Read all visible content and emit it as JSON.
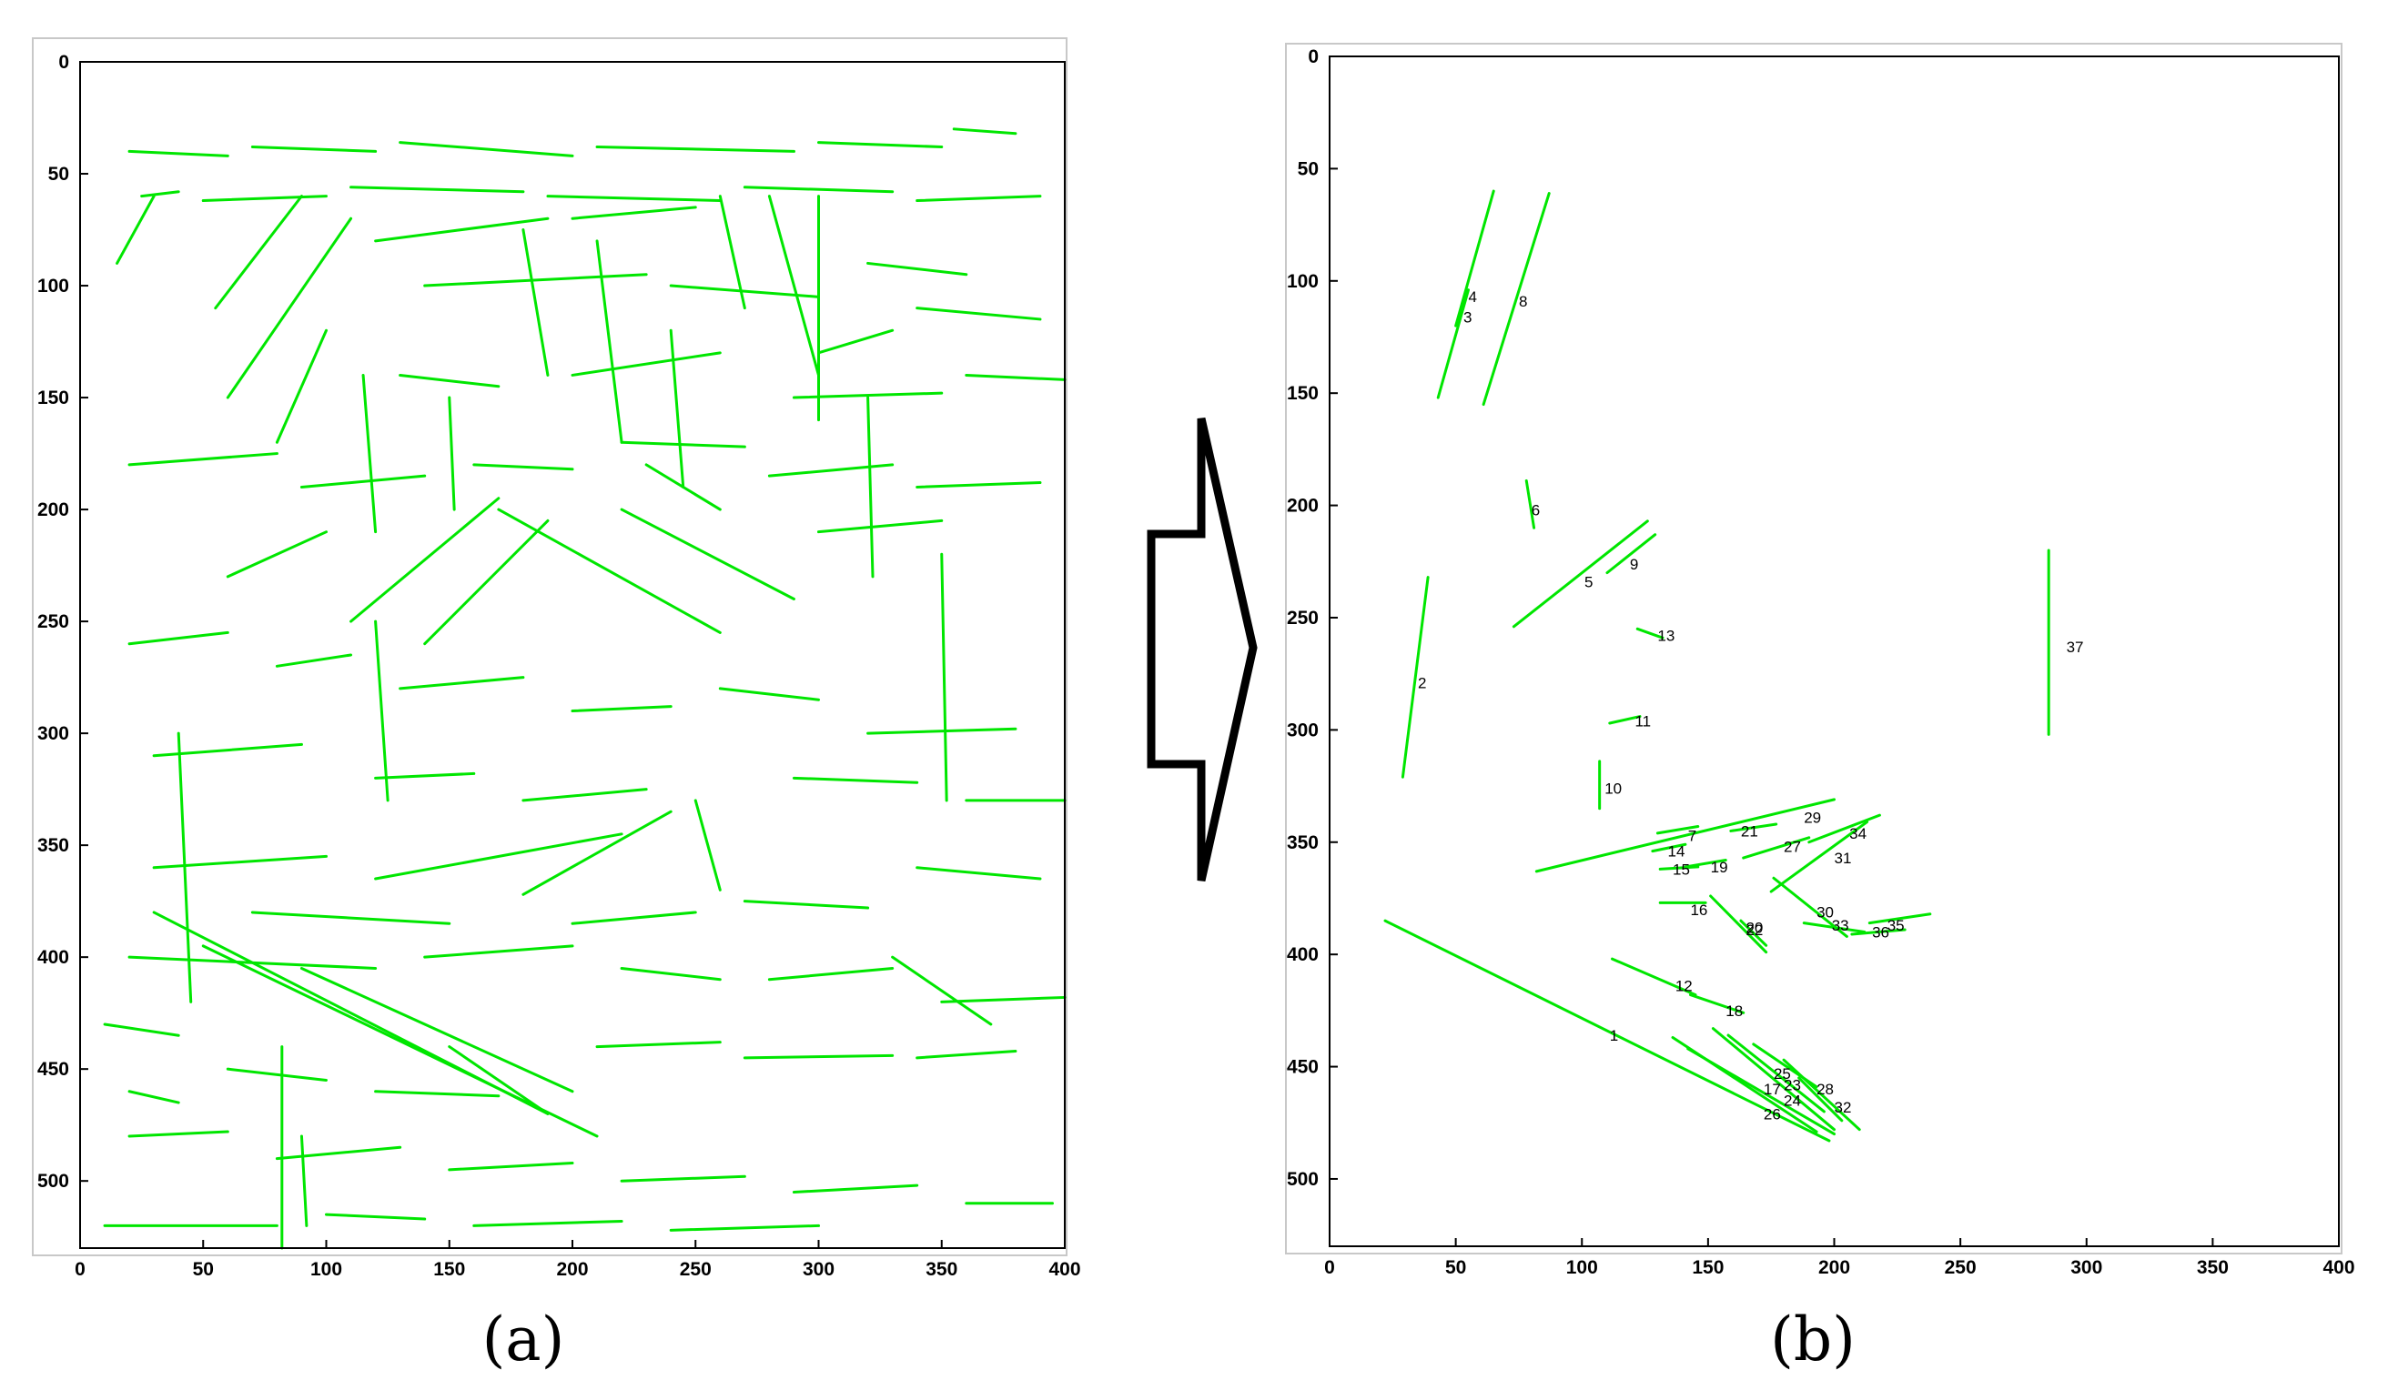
{
  "chart_data": [
    {
      "type": "line",
      "panel_label": "(a)",
      "xlim": [
        0,
        400
      ],
      "ylim": [
        530,
        0
      ],
      "x_ticks": [
        0,
        50,
        100,
        150,
        200,
        250,
        300,
        350,
        400
      ],
      "y_ticks": [
        0,
        50,
        100,
        150,
        200,
        250,
        300,
        350,
        400,
        450,
        500
      ],
      "grid": false,
      "line_color": "#00e600",
      "segments": [
        [
          20,
          40,
          60,
          42
        ],
        [
          70,
          38,
          120,
          40
        ],
        [
          130,
          36,
          200,
          42
        ],
        [
          210,
          38,
          290,
          40
        ],
        [
          300,
          36,
          350,
          38
        ],
        [
          355,
          30,
          380,
          32
        ],
        [
          25,
          60,
          40,
          58
        ],
        [
          50,
          62,
          100,
          60
        ],
        [
          110,
          56,
          180,
          58
        ],
        [
          190,
          60,
          260,
          62
        ],
        [
          270,
          56,
          330,
          58
        ],
        [
          340,
          62,
          390,
          60
        ],
        [
          15,
          90,
          30,
          60
        ],
        [
          55,
          110,
          90,
          60
        ],
        [
          100,
          120,
          80,
          170
        ],
        [
          60,
          150,
          110,
          70
        ],
        [
          120,
          80,
          190,
          70
        ],
        [
          200,
          70,
          250,
          65
        ],
        [
          180,
          75,
          190,
          140
        ],
        [
          210,
          80,
          220,
          170
        ],
        [
          140,
          100,
          230,
          95
        ],
        [
          240,
          100,
          300,
          105
        ],
        [
          280,
          60,
          300,
          140
        ],
        [
          320,
          90,
          360,
          95
        ],
        [
          340,
          110,
          390,
          115
        ],
        [
          300,
          130,
          330,
          120
        ],
        [
          200,
          140,
          260,
          130
        ],
        [
          130,
          140,
          170,
          145
        ],
        [
          115,
          140,
          120,
          210
        ],
        [
          150,
          150,
          152,
          200
        ],
        [
          240,
          120,
          245,
          190
        ],
        [
          290,
          150,
          350,
          148
        ],
        [
          360,
          140,
          400,
          142
        ],
        [
          20,
          180,
          80,
          175
        ],
        [
          90,
          190,
          140,
          185
        ],
        [
          160,
          180,
          200,
          182
        ],
        [
          220,
          170,
          270,
          172
        ],
        [
          280,
          185,
          330,
          180
        ],
        [
          340,
          190,
          390,
          188
        ],
        [
          60,
          230,
          100,
          210
        ],
        [
          110,
          250,
          170,
          195
        ],
        [
          140,
          260,
          190,
          205
        ],
        [
          170,
          200,
          260,
          255
        ],
        [
          220,
          200,
          290,
          240
        ],
        [
          300,
          210,
          350,
          205
        ],
        [
          20,
          260,
          60,
          255
        ],
        [
          80,
          270,
          110,
          265
        ],
        [
          130,
          280,
          180,
          275
        ],
        [
          200,
          290,
          240,
          288
        ],
        [
          260,
          280,
          300,
          285
        ],
        [
          320,
          300,
          380,
          298
        ],
        [
          30,
          310,
          90,
          305
        ],
        [
          120,
          320,
          160,
          318
        ],
        [
          180,
          330,
          230,
          325
        ],
        [
          250,
          330,
          260,
          370
        ],
        [
          290,
          320,
          340,
          322
        ],
        [
          360,
          330,
          400,
          330
        ],
        [
          30,
          360,
          100,
          355
        ],
        [
          120,
          365,
          220,
          345
        ],
        [
          180,
          372,
          240,
          335
        ],
        [
          70,
          380,
          150,
          385
        ],
        [
          200,
          385,
          250,
          380
        ],
        [
          270,
          375,
          320,
          378
        ],
        [
          340,
          360,
          390,
          365
        ],
        [
          20,
          400,
          120,
          405
        ],
        [
          140,
          400,
          200,
          395
        ],
        [
          220,
          405,
          260,
          410
        ],
        [
          280,
          410,
          330,
          405
        ],
        [
          350,
          420,
          400,
          418
        ],
        [
          30,
          380,
          190,
          470
        ],
        [
          50,
          395,
          210,
          480
        ],
        [
          90,
          405,
          200,
          460
        ],
        [
          150,
          440,
          190,
          470
        ],
        [
          210,
          440,
          260,
          438
        ],
        [
          270,
          445,
          330,
          444
        ],
        [
          340,
          445,
          380,
          442
        ],
        [
          10,
          430,
          40,
          435
        ],
        [
          60,
          450,
          100,
          455
        ],
        [
          120,
          460,
          170,
          462
        ],
        [
          20,
          480,
          60,
          478
        ],
        [
          80,
          490,
          130,
          485
        ],
        [
          150,
          495,
          200,
          492
        ],
        [
          220,
          500,
          270,
          498
        ],
        [
          290,
          505,
          340,
          502
        ],
        [
          360,
          510,
          395,
          510
        ],
        [
          10,
          520,
          80,
          520
        ],
        [
          100,
          515,
          140,
          517
        ],
        [
          160,
          520,
          220,
          518
        ],
        [
          240,
          522,
          300,
          520
        ],
        [
          20,
          460,
          40,
          465
        ],
        [
          82,
          440,
          82,
          530
        ],
        [
          90,
          480,
          92,
          520
        ],
        [
          300,
          60,
          300,
          160
        ],
        [
          320,
          150,
          322,
          230
        ],
        [
          350,
          220,
          352,
          330
        ],
        [
          260,
          60,
          270,
          110
        ],
        [
          230,
          180,
          260,
          200
        ],
        [
          120,
          250,
          125,
          330
        ],
        [
          40,
          300,
          45,
          420
        ],
        [
          330,
          400,
          370,
          430
        ]
      ]
    },
    {
      "type": "line",
      "panel_label": "(b)",
      "xlim": [
        0,
        400
      ],
      "ylim": [
        530,
        0
      ],
      "x_ticks": [
        0,
        50,
        100,
        150,
        200,
        250,
        300,
        350,
        400
      ],
      "y_ticks": [
        0,
        50,
        100,
        150,
        200,
        250,
        300,
        350,
        400,
        450,
        500
      ],
      "grid": false,
      "line_color": "#00e600",
      "lines": [
        {
          "label": "1",
          "x1": 22,
          "y1": 385,
          "x2": 198,
          "y2": 483
        },
        {
          "label": "2",
          "x1": 29,
          "y1": 321,
          "x2": 39,
          "y2": 232
        },
        {
          "label": "3",
          "x1": 43,
          "y1": 152,
          "x2": 55,
          "y2": 104
        },
        {
          "label": "4",
          "x1": 50,
          "y1": 120,
          "x2": 65,
          "y2": 60
        },
        {
          "label": "5",
          "x1": 73,
          "y1": 254,
          "x2": 126,
          "y2": 207
        },
        {
          "label": "6",
          "x1": 78,
          "y1": 189,
          "x2": 81,
          "y2": 210
        },
        {
          "label": "7",
          "x1": 130,
          "y1": 346,
          "x2": 146,
          "y2": 343
        },
        {
          "label": "8",
          "x1": 61,
          "y1": 155,
          "x2": 87,
          "y2": 61
        },
        {
          "label": "9",
          "x1": 110,
          "y1": 230,
          "x2": 129,
          "y2": 213
        },
        {
          "label": "10",
          "x1": 107,
          "y1": 335,
          "x2": 107,
          "y2": 314
        },
        {
          "label": "11",
          "x1": 111,
          "y1": 297,
          "x2": 123,
          "y2": 294
        },
        {
          "label": "12",
          "x1": 112,
          "y1": 402,
          "x2": 145,
          "y2": 418
        },
        {
          "label": "13",
          "x1": 122,
          "y1": 255,
          "x2": 132,
          "y2": 259
        },
        {
          "label": "14",
          "x1": 128,
          "y1": 354,
          "x2": 141,
          "y2": 351
        },
        {
          "label": "15",
          "x1": 131,
          "y1": 362,
          "x2": 146,
          "y2": 361
        },
        {
          "label": "16",
          "x1": 131,
          "y1": 377,
          "x2": 149,
          "y2": 377
        },
        {
          "label": "17",
          "x1": 136,
          "y1": 437,
          "x2": 193,
          "y2": 479
        },
        {
          "label": "18",
          "x1": 143,
          "y1": 418,
          "x2": 164,
          "y2": 426
        },
        {
          "label": "19",
          "x1": 141,
          "y1": 361,
          "x2": 157,
          "y2": 358
        },
        {
          "label": "20",
          "x1": 163,
          "y1": 385,
          "x2": 173,
          "y2": 396
        },
        {
          "label": "21",
          "x1": 159,
          "y1": 345,
          "x2": 177,
          "y2": 342
        },
        {
          "label": "22",
          "x1": 151,
          "y1": 374,
          "x2": 173,
          "y2": 399
        },
        {
          "label": "23",
          "x1": 158,
          "y1": 436,
          "x2": 196,
          "y2": 470
        },
        {
          "label": "24",
          "x1": 152,
          "y1": 433,
          "x2": 200,
          "y2": 478
        },
        {
          "label": "25",
          "x1": 168,
          "y1": 440,
          "x2": 193,
          "y2": 459
        },
        {
          "label": "26",
          "x1": 142,
          "y1": 442,
          "x2": 200,
          "y2": 480
        },
        {
          "label": "27",
          "x1": 164,
          "y1": 357,
          "x2": 190,
          "y2": 348
        },
        {
          "label": "28",
          "x1": 180,
          "y1": 447,
          "x2": 210,
          "y2": 478
        },
        {
          "label": "29",
          "x1": 82,
          "y1": 363,
          "x2": 200,
          "y2": 331
        },
        {
          "label": "30",
          "x1": 176,
          "y1": 366,
          "x2": 205,
          "y2": 392
        },
        {
          "label": "31",
          "x1": 175,
          "y1": 372,
          "x2": 213,
          "y2": 341
        },
        {
          "label": "32",
          "x1": 186,
          "y1": 455,
          "x2": 203,
          "y2": 474
        },
        {
          "label": "33",
          "x1": 188,
          "y1": 386,
          "x2": 212,
          "y2": 390
        },
        {
          "label": "34",
          "x1": 190,
          "y1": 350,
          "x2": 218,
          "y2": 338
        },
        {
          "label": "35",
          "x1": 214,
          "y1": 386,
          "x2": 238,
          "y2": 382
        },
        {
          "label": "36",
          "x1": 207,
          "y1": 391,
          "x2": 228,
          "y2": 389
        },
        {
          "label": "37",
          "x1": 285,
          "y1": 220,
          "x2": 285,
          "y2": 302
        }
      ],
      "label_positions": [
        {
          "label": "1",
          "x": 111,
          "y": 436
        },
        {
          "label": "2",
          "x": 35,
          "y": 279
        },
        {
          "label": "3",
          "x": 53,
          "y": 116
        },
        {
          "label": "4",
          "x": 55,
          "y": 107
        },
        {
          "label": "5",
          "x": 101,
          "y": 234
        },
        {
          "label": "6",
          "x": 80,
          "y": 202
        },
        {
          "label": "7",
          "x": 142,
          "y": 347
        },
        {
          "label": "8",
          "x": 75,
          "y": 109
        },
        {
          "label": "9",
          "x": 119,
          "y": 226
        },
        {
          "label": "10",
          "x": 109,
          "y": 326
        },
        {
          "label": "11",
          "x": 121,
          "y": 296
        },
        {
          "label": "12",
          "x": 137,
          "y": 414
        },
        {
          "label": "13",
          "x": 130,
          "y": 258
        },
        {
          "label": "14",
          "x": 134,
          "y": 354
        },
        {
          "label": "15",
          "x": 136,
          "y": 362
        },
        {
          "label": "16",
          "x": 143,
          "y": 380
        },
        {
          "label": "17",
          "x": 172,
          "y": 460
        },
        {
          "label": "18",
          "x": 157,
          "y": 425
        },
        {
          "label": "19",
          "x": 151,
          "y": 361
        },
        {
          "label": "20",
          "x": 165,
          "y": 388
        },
        {
          "label": "21",
          "x": 163,
          "y": 345
        },
        {
          "label": "22",
          "x": 165,
          "y": 389
        },
        {
          "label": "23",
          "x": 180,
          "y": 458
        },
        {
          "label": "24",
          "x": 180,
          "y": 465
        },
        {
          "label": "25",
          "x": 176,
          "y": 453
        },
        {
          "label": "26",
          "x": 172,
          "y": 471
        },
        {
          "label": "27",
          "x": 180,
          "y": 352
        },
        {
          "label": "28",
          "x": 193,
          "y": 460
        },
        {
          "label": "29",
          "x": 188,
          "y": 339
        },
        {
          "label": "30",
          "x": 193,
          "y": 381
        },
        {
          "label": "31",
          "x": 200,
          "y": 357
        },
        {
          "label": "32",
          "x": 200,
          "y": 468
        },
        {
          "label": "33",
          "x": 199,
          "y": 387
        },
        {
          "label": "34",
          "x": 206,
          "y": 346
        },
        {
          "label": "35",
          "x": 221,
          "y": 387
        },
        {
          "label": "36",
          "x": 215,
          "y": 390
        },
        {
          "label": "37",
          "x": 292,
          "y": 263
        }
      ]
    }
  ]
}
